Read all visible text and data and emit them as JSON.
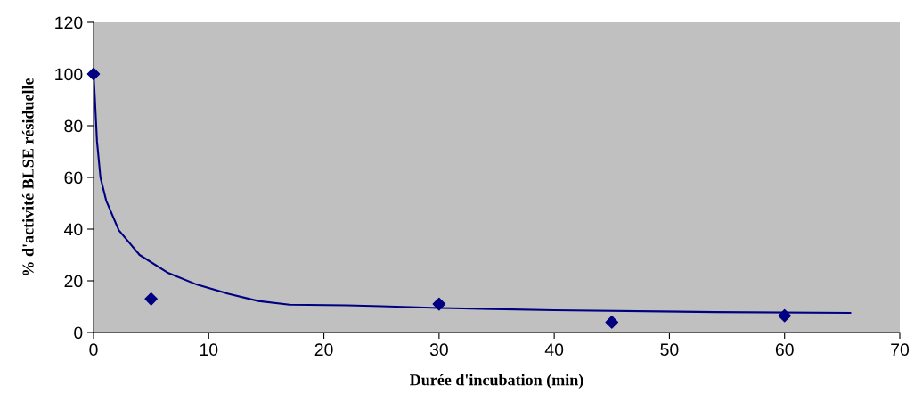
{
  "chart_data": {
    "type": "scatter",
    "xlabel": "Durée d'incubation (min)",
    "ylabel": "% d'activité BLSE résiduelle",
    "xlim": [
      0,
      70
    ],
    "xticks": [
      0,
      10,
      20,
      30,
      40,
      50,
      60,
      70
    ],
    "ylim": [
      0,
      120
    ],
    "yticks": [
      0,
      20,
      40,
      60,
      80,
      100,
      120
    ],
    "grid": false,
    "marker": "diamond",
    "series": [
      {
        "color": "#000080",
        "x": [
          0,
          5,
          30,
          45,
          60
        ],
        "values": [
          100,
          13,
          11,
          4,
          6.5
        ]
      },
      {
        "type": "line",
        "color": "#000080",
        "marker": "none",
        "line_style": "solid",
        "x": [
          0,
          0.1,
          0.3,
          0.6,
          1.1,
          2.2,
          4,
          6.5,
          9,
          11.7,
          14.3,
          17,
          22,
          25,
          30,
          34.5,
          40,
          54,
          65.7
        ],
        "values": [
          100,
          92,
          74,
          60,
          51,
          39.5,
          30,
          23,
          18.5,
          15,
          12.2,
          10.8,
          10.5,
          10.2,
          9.5,
          9.1,
          8.6,
          7.9,
          7.6
        ]
      }
    ]
  }
}
